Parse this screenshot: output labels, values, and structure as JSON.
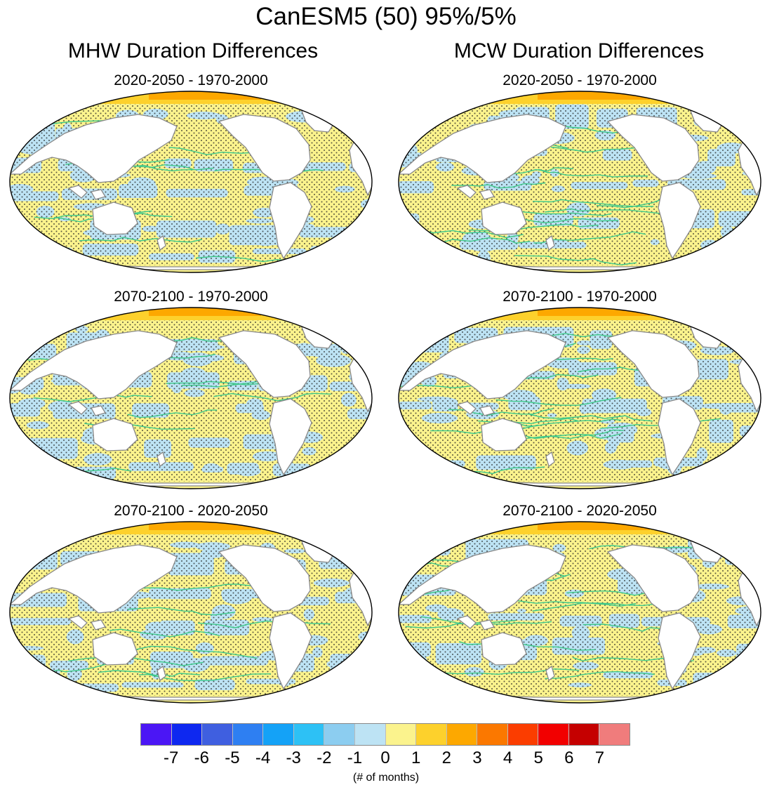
{
  "title": "CanESM5 (50) 95%/5%",
  "columns": [
    {
      "title": "MHW Duration Differences",
      "panels": [
        "2020-2050 - 1970-2000",
        "2070-2100 - 1970-2000",
        "2070-2100 - 2020-2050"
      ]
    },
    {
      "title": "MCW Duration Differences",
      "panels": [
        "2020-2050 - 1970-2000",
        "2070-2100 - 1970-2000",
        "2070-2100 - 2020-2050"
      ]
    }
  ],
  "colorbar": {
    "colors": [
      "#4b16f5",
      "#0e28f0",
      "#3f5fe0",
      "#2e7ff2",
      "#14a2f7",
      "#2dc1f5",
      "#8ccdf0",
      "#bde3f4",
      "#fbf38d",
      "#fdd12c",
      "#fda800",
      "#fb7800",
      "#fb3d00",
      "#f20000",
      "#c50000",
      "#f07c7c"
    ],
    "ticks": [
      "-7",
      "-6",
      "-5",
      "-4",
      "-3",
      "-2",
      "-1",
      "0",
      "1",
      "2",
      "3",
      "4",
      "5",
      "6",
      "7"
    ],
    "unit_label": "(# of months)"
  },
  "legend_symbols": {
    "yellow": "#fbf38d",
    "blue": "#bde3f4",
    "orange": "#fdd12c",
    "green_contour": "#3cc98a",
    "coast": "#888888"
  }
}
